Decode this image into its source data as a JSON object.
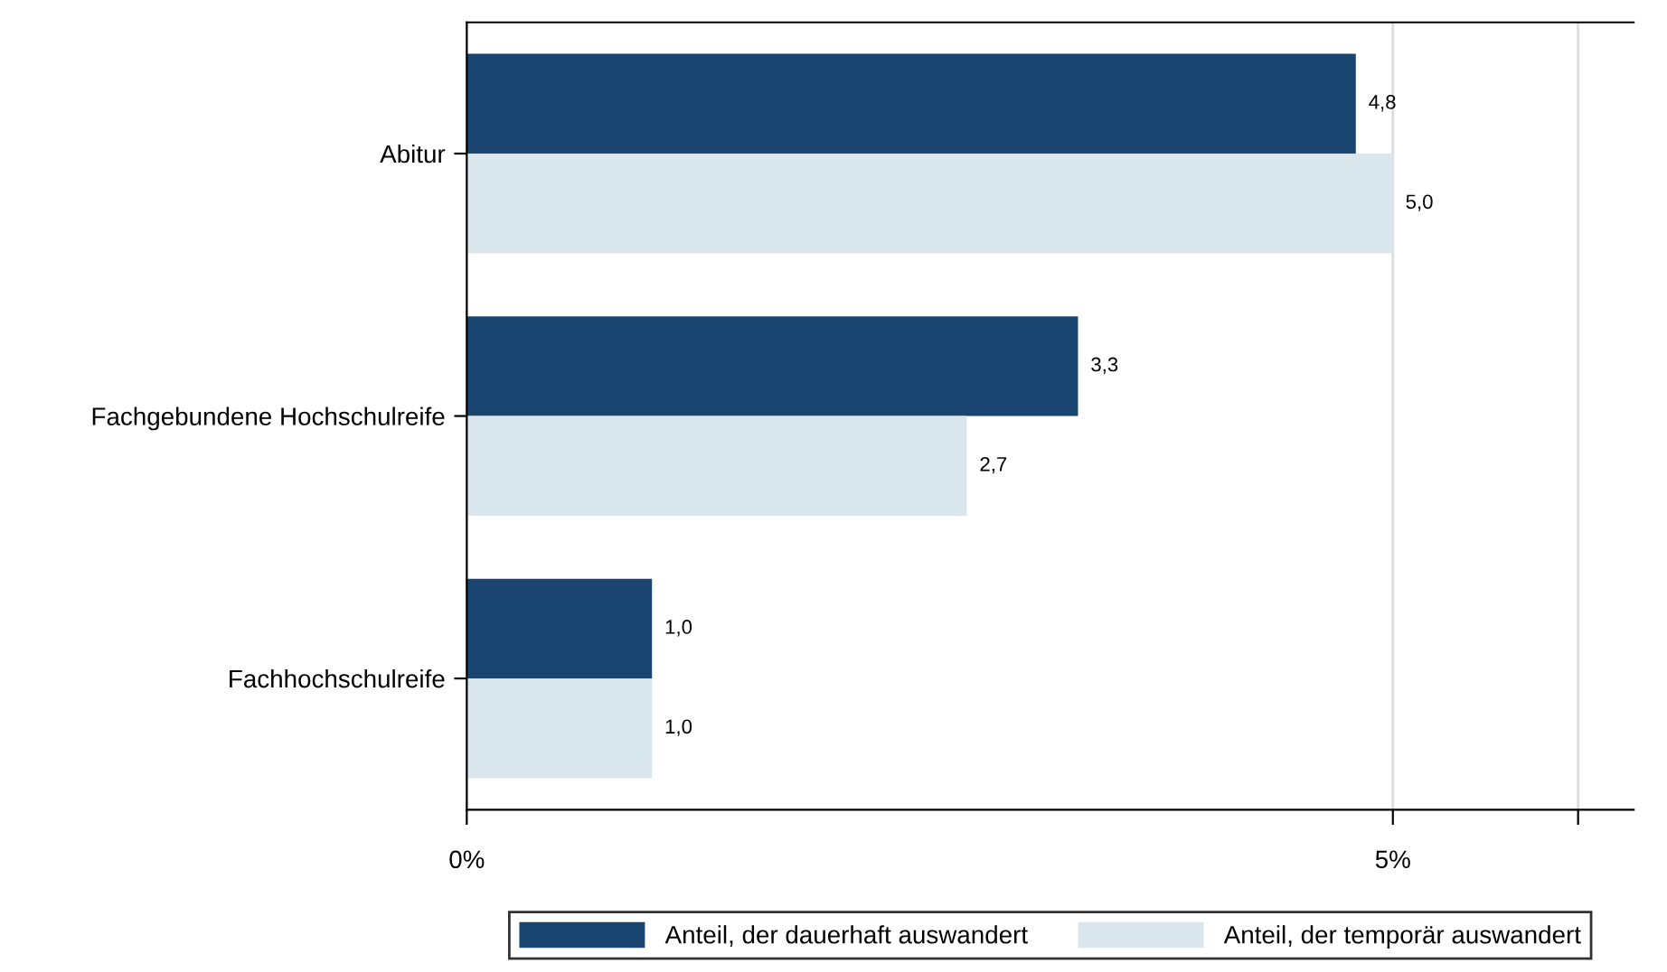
{
  "chart_data": {
    "type": "bar",
    "orientation": "horizontal",
    "categories": [
      "Abitur",
      "Fachgebundene Hochschulreife",
      "Fachhochschulreife"
    ],
    "series": [
      {
        "name": "Anteil, der dauerhaft auswandert",
        "color": "#1a4570",
        "values": [
          4.8,
          3.3,
          1.0
        ],
        "value_labels": [
          "4,8",
          "3,3",
          "1,0"
        ]
      },
      {
        "name": "Anteil, der temporär auswandert",
        "color": "#d9e6ec",
        "values": [
          5.0,
          2.7,
          1.0
        ],
        "value_labels": [
          "5,0",
          "2,7",
          "1,0"
        ]
      }
    ],
    "xlim": [
      0,
      6.3
    ],
    "xticks": [
      {
        "value": 0,
        "label": "0%"
      },
      {
        "value": 5,
        "label": "5%"
      },
      {
        "value": 6,
        "label": null
      }
    ],
    "grid": "x",
    "legend": "bottom"
  }
}
